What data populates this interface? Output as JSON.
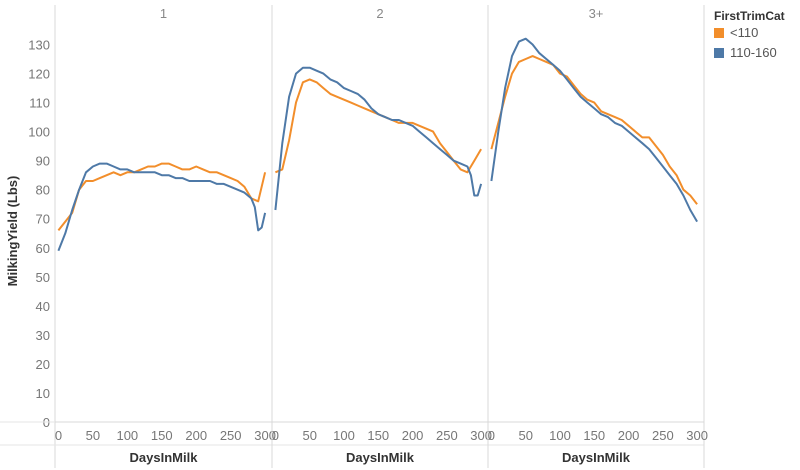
{
  "chart_data": {
    "type": "line",
    "ylabel": "MilkingYield (Lbs)",
    "ylim": [
      0,
      135
    ],
    "yticks": [
      0,
      10,
      20,
      30,
      40,
      50,
      60,
      70,
      80,
      90,
      100,
      110,
      120,
      130
    ],
    "xlim": [
      -5,
      310
    ],
    "xticks": [
      0,
      50,
      100,
      150,
      200,
      250,
      300
    ],
    "legend": {
      "title": "FirstTrimCat",
      "position": "top-right"
    },
    "series_meta": [
      {
        "name": "<110",
        "color": "#F28E2B"
      },
      {
        "name": "110-160",
        "color": "#4E79A7"
      }
    ],
    "panels": [
      {
        "title": "1",
        "xlabel": "DaysInMilk",
        "series": [
          {
            "name": "<110",
            "x": [
              0,
              10,
              20,
              30,
              40,
              50,
              60,
              70,
              80,
              90,
              100,
              110,
              120,
              130,
              140,
              150,
              160,
              170,
              180,
              190,
              200,
              210,
              220,
              230,
              240,
              250,
              260,
              270,
              280,
              290,
              300
            ],
            "y": [
              66,
              69,
              72,
              80,
              83,
              83,
              84,
              85,
              86,
              85,
              86,
              86,
              87,
              88,
              88,
              89,
              89,
              88,
              87,
              87,
              88,
              87,
              86,
              86,
              85,
              84,
              83,
              81,
              77,
              76,
              86
            ]
          },
          {
            "name": "110-160",
            "x": [
              0,
              10,
              20,
              30,
              40,
              50,
              60,
              70,
              80,
              90,
              100,
              110,
              120,
              130,
              140,
              150,
              160,
              170,
              180,
              190,
              200,
              210,
              220,
              230,
              240,
              250,
              260,
              270,
              280,
              285,
              290,
              295,
              300
            ],
            "y": [
              59,
              65,
              73,
              80,
              86,
              88,
              89,
              89,
              88,
              87,
              87,
              86,
              86,
              86,
              86,
              85,
              85,
              84,
              84,
              83,
              83,
              83,
              83,
              82,
              82,
              81,
              80,
              79,
              77,
              74,
              66,
              67,
              72
            ]
          }
        ]
      },
      {
        "title": "2",
        "xlabel": "DaysInMilk",
        "series": [
          {
            "name": "<110",
            "x": [
              0,
              10,
              20,
              30,
              40,
              50,
              60,
              70,
              80,
              90,
              100,
              110,
              120,
              130,
              140,
              150,
              160,
              170,
              180,
              190,
              200,
              210,
              220,
              230,
              240,
              250,
              260,
              270,
              280,
              290,
              300
            ],
            "y": [
              86,
              87,
              97,
              110,
              117,
              118,
              117,
              115,
              113,
              112,
              111,
              110,
              109,
              108,
              107,
              106,
              105,
              104,
              103,
              103,
              103,
              102,
              101,
              100,
              96,
              93,
              90,
              87,
              86,
              90,
              94
            ]
          },
          {
            "name": "110-160",
            "x": [
              0,
              10,
              20,
              30,
              40,
              50,
              60,
              70,
              80,
              90,
              100,
              110,
              120,
              130,
              140,
              150,
              160,
              170,
              180,
              190,
              200,
              210,
              220,
              230,
              240,
              250,
              260,
              270,
              280,
              285,
              290,
              295,
              300
            ],
            "y": [
              73,
              96,
              112,
              120,
              122,
              122,
              121,
              120,
              118,
              117,
              115,
              114,
              113,
              111,
              108,
              106,
              105,
              104,
              104,
              103,
              102,
              100,
              98,
              96,
              94,
              92,
              90,
              89,
              88,
              85,
              78,
              78,
              82
            ]
          }
        ]
      },
      {
        "title": "3+",
        "xlabel": "DaysInMilk",
        "series": [
          {
            "name": "<110",
            "x": [
              0,
              10,
              20,
              30,
              40,
              50,
              60,
              70,
              80,
              90,
              100,
              110,
              120,
              130,
              140,
              150,
              160,
              170,
              180,
              190,
              200,
              210,
              220,
              230,
              240,
              250,
              260,
              270,
              280,
              290,
              300
            ],
            "y": [
              94,
              103,
              112,
              120,
              124,
              125,
              126,
              125,
              124,
              123,
              120,
              119,
              116,
              113,
              111,
              110,
              107,
              106,
              105,
              104,
              102,
              100,
              98,
              98,
              95,
              92,
              88,
              85,
              80,
              78,
              75
            ]
          },
          {
            "name": "110-160",
            "x": [
              0,
              10,
              20,
              30,
              40,
              50,
              60,
              70,
              80,
              90,
              100,
              110,
              120,
              130,
              140,
              150,
              160,
              170,
              180,
              190,
              200,
              210,
              220,
              230,
              240,
              250,
              260,
              270,
              280,
              290,
              300
            ],
            "y": [
              83,
              100,
              115,
              126,
              131,
              132,
              130,
              127,
              125,
              123,
              121,
              118,
              115,
              112,
              110,
              108,
              106,
              105,
              103,
              102,
              100,
              98,
              96,
              94,
              91,
              88,
              85,
              82,
              78,
              73,
              69
            ]
          }
        ]
      }
    ]
  }
}
